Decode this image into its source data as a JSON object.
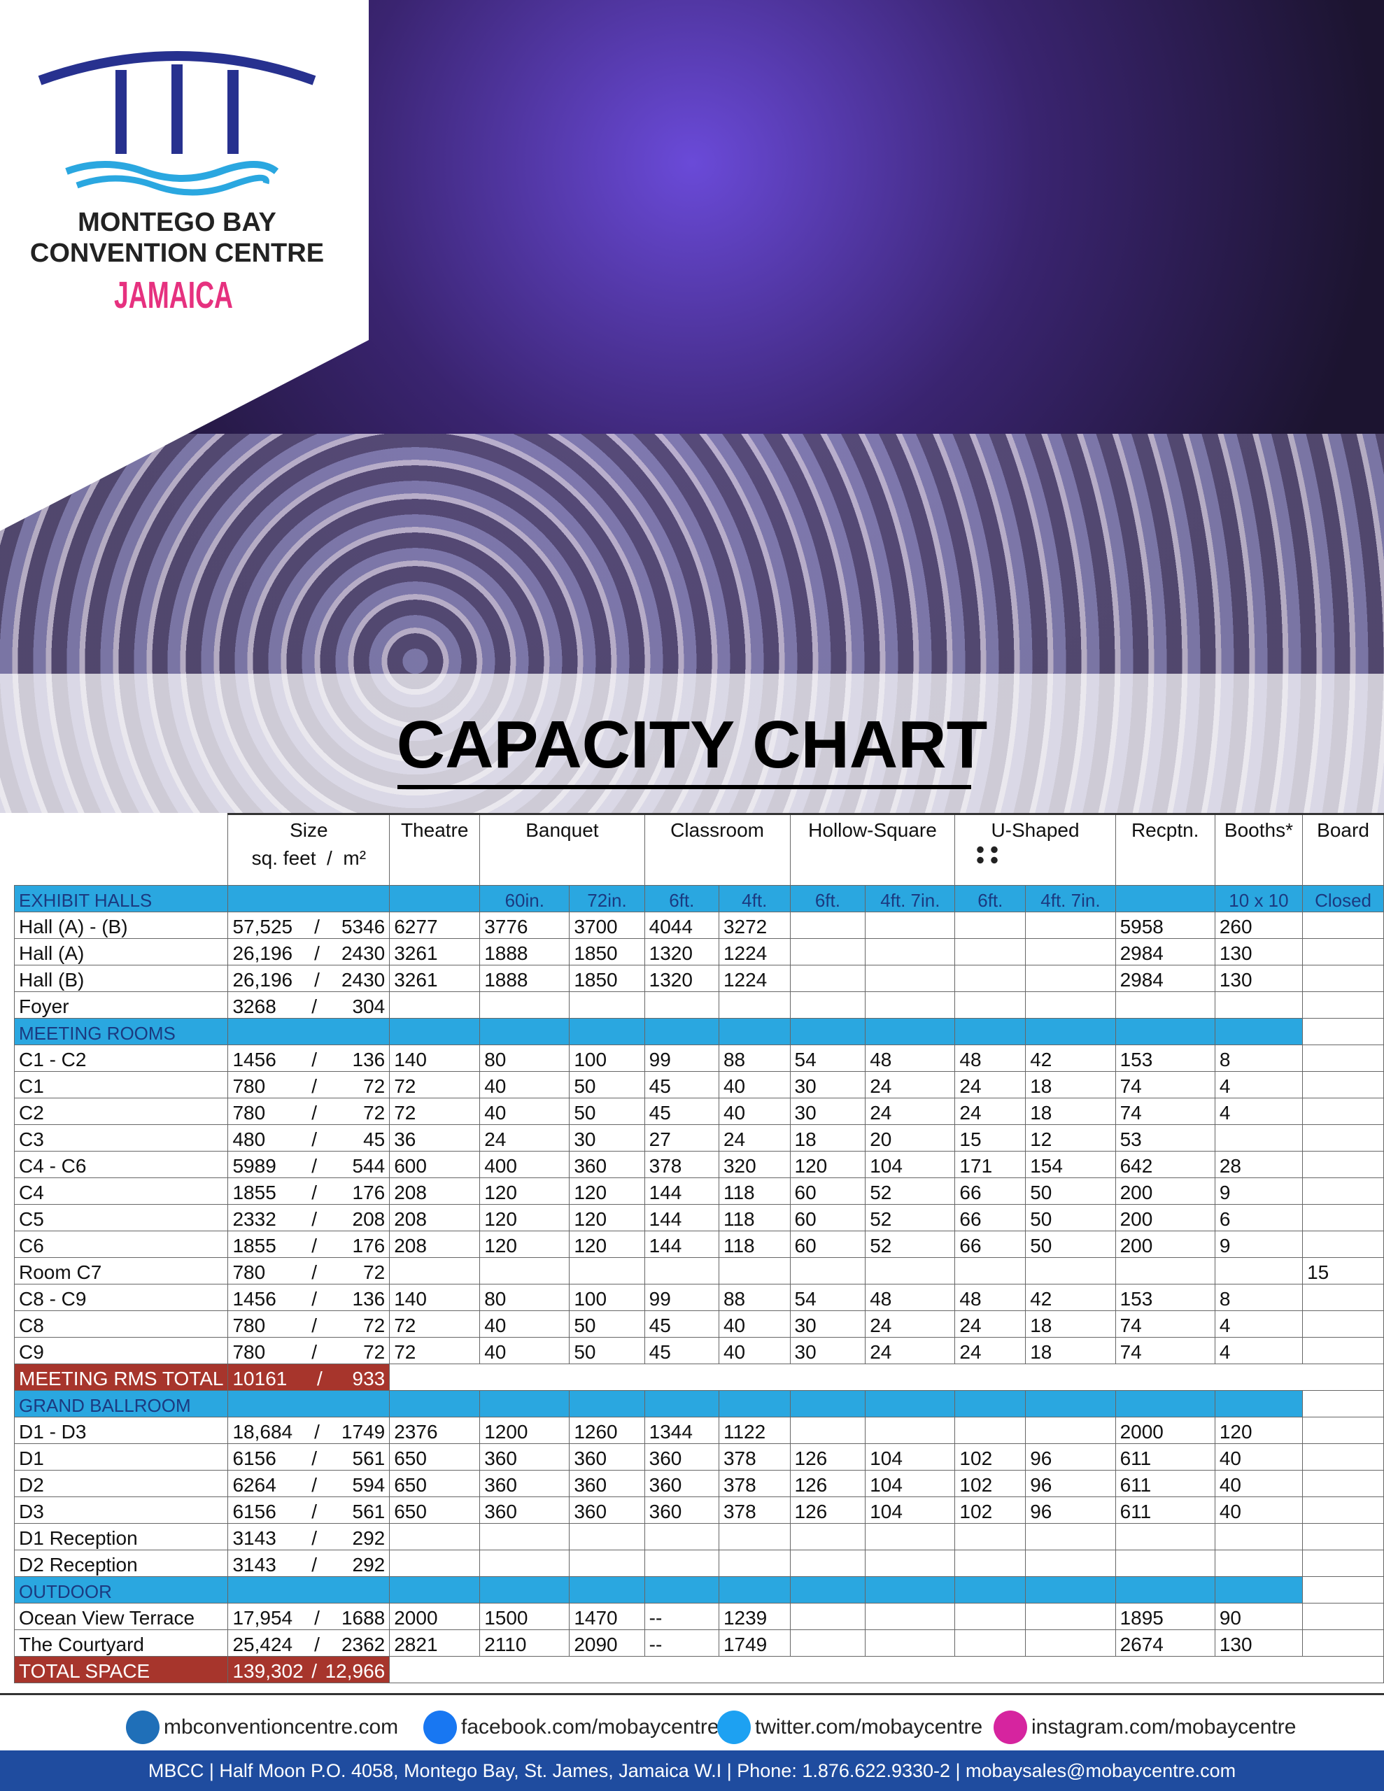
{
  "logo": {
    "line1": "MONTEGO BAY",
    "line2": "CONVENTION CENTRE",
    "line3": "JAMAICA"
  },
  "title": "CAPACITY CHART",
  "table": {
    "size_header": "Size",
    "size_units": "sq. feet  /  m²",
    "columns": [
      "Theatre",
      "Banquet",
      "Classroom",
      "Hollow-Square",
      "U-Shaped",
      "Recptn.",
      "Booths*",
      "Board"
    ],
    "subcolumns": [
      null,
      "60in.",
      "72in.",
      "6ft.",
      "4ft.",
      "6ft.",
      "4ft. 7in.",
      "6ft.",
      "4ft. 7in.",
      null,
      "10 x 10",
      "Closed"
    ],
    "separator": "/",
    "rows": [
      {
        "section": "EXHIBIT HALLS"
      },
      {
        "name": "Hall (A) - (B)",
        "sqft": "57,525",
        "m2": "5346",
        "cells": [
          "6277",
          "3776",
          "3700",
          "4044",
          "3272",
          null,
          null,
          null,
          null,
          "5958",
          "260",
          null
        ]
      },
      {
        "name": "Hall (A)",
        "sqft": "26,196",
        "m2": "2430",
        "cells": [
          "3261",
          "1888",
          "1850",
          "1320",
          "1224",
          null,
          null,
          null,
          null,
          "2984",
          "130",
          null
        ]
      },
      {
        "name": "Hall (B)",
        "sqft": "26,196",
        "m2": "2430",
        "cells": [
          "3261",
          "1888",
          "1850",
          "1320",
          "1224",
          null,
          null,
          null,
          null,
          "2984",
          "130",
          null
        ]
      },
      {
        "name": "Foyer",
        "sqft": "3268",
        "m2": "304",
        "cells": [
          null,
          null,
          null,
          null,
          null,
          null,
          null,
          null,
          null,
          null,
          null,
          null
        ]
      },
      {
        "section": "MEETING ROOMS"
      },
      {
        "name": "C1 - C2",
        "sqft": "1456",
        "m2": "136",
        "cells": [
          "140",
          "80",
          "100",
          "99",
          "88",
          "54",
          "48",
          "48",
          "42",
          "153",
          "8",
          null
        ]
      },
      {
        "name": "C1",
        "sqft": "780",
        "m2": "72",
        "cells": [
          "72",
          "40",
          "50",
          "45",
          "40",
          "30",
          "24",
          "24",
          "18",
          "74",
          "4",
          null
        ]
      },
      {
        "name": "C2",
        "sqft": "780",
        "m2": "72",
        "cells": [
          "72",
          "40",
          "50",
          "45",
          "40",
          "30",
          "24",
          "24",
          "18",
          "74",
          "4",
          null
        ]
      },
      {
        "name": "C3",
        "sqft": "480",
        "m2": "45",
        "cells": [
          "36",
          "24",
          "30",
          "27",
          "24",
          "18",
          "20",
          "15",
          "12",
          "53",
          null,
          null
        ]
      },
      {
        "name": "C4 - C6",
        "sqft": "5989",
        "m2": "544",
        "cells": [
          "600",
          "400",
          "360",
          "378",
          "320",
          "120",
          "104",
          "171",
          "154",
          "642",
          "28",
          null
        ]
      },
      {
        "name": "C4",
        "sqft": "1855",
        "m2": "176",
        "cells": [
          "208",
          "120",
          "120",
          "144",
          "118",
          "60",
          "52",
          "66",
          "50",
          "200",
          "9",
          null
        ]
      },
      {
        "name": "C5",
        "sqft": "2332",
        "m2": "208",
        "cells": [
          "208",
          "120",
          "120",
          "144",
          "118",
          "60",
          "52",
          "66",
          "50",
          "200",
          "6",
          null
        ]
      },
      {
        "name": "C6",
        "sqft": "1855",
        "m2": "176",
        "cells": [
          "208",
          "120",
          "120",
          "144",
          "118",
          "60",
          "52",
          "66",
          "50",
          "200",
          "9",
          null
        ]
      },
      {
        "name": "Room C7",
        "sqft": "780",
        "m2": "72",
        "cells": [
          null,
          null,
          null,
          null,
          null,
          null,
          null,
          null,
          null,
          null,
          null,
          "15"
        ]
      },
      {
        "name": "C8 - C9",
        "sqft": "1456",
        "m2": "136",
        "cells": [
          "140",
          "80",
          "100",
          "99",
          "88",
          "54",
          "48",
          "48",
          "42",
          "153",
          "8",
          null
        ]
      },
      {
        "name": "C8",
        "sqft": "780",
        "m2": "72",
        "cells": [
          "72",
          "40",
          "50",
          "45",
          "40",
          "30",
          "24",
          "24",
          "18",
          "74",
          "4",
          null
        ]
      },
      {
        "name": "C9",
        "sqft": "780",
        "m2": "72",
        "cells": [
          "72",
          "40",
          "50",
          "45",
          "40",
          "30",
          "24",
          "24",
          "18",
          "74",
          "4",
          null
        ]
      },
      {
        "total": "MEETING RMS TOTAL",
        "sqft": "10161",
        "m2": "933"
      },
      {
        "section": "GRAND BALLROOM"
      },
      {
        "name": "D1 - D3",
        "sqft": "18,684",
        "m2": "1749",
        "cells": [
          "2376",
          "1200",
          "1260",
          "1344",
          "1122",
          null,
          null,
          null,
          null,
          "2000",
          "120",
          null
        ]
      },
      {
        "name": "D1",
        "sqft": "6156",
        "m2": "561",
        "cells": [
          "650",
          "360",
          "360",
          "360",
          "378",
          "126",
          "104",
          "102",
          "96",
          "611",
          "40",
          null
        ]
      },
      {
        "name": "D2",
        "sqft": "6264",
        "m2": "594",
        "cells": [
          "650",
          "360",
          "360",
          "360",
          "378",
          "126",
          "104",
          "102",
          "96",
          "611",
          "40",
          null
        ]
      },
      {
        "name": "D3",
        "sqft": "6156",
        "m2": "561",
        "cells": [
          "650",
          "360",
          "360",
          "360",
          "378",
          "126",
          "104",
          "102",
          "96",
          "611",
          "40",
          null
        ]
      },
      {
        "name": "D1 Reception",
        "sqft": "3143",
        "m2": "292",
        "cells": [
          null,
          null,
          null,
          null,
          null,
          null,
          null,
          null,
          null,
          null,
          null,
          null
        ]
      },
      {
        "name": "D2 Reception",
        "sqft": "3143",
        "m2": "292",
        "cells": [
          null,
          null,
          null,
          null,
          null,
          null,
          null,
          null,
          null,
          null,
          null,
          null
        ]
      },
      {
        "section": "OUTDOOR"
      },
      {
        "name": "Ocean View Terrace",
        "sqft": "17,954",
        "m2": "1688",
        "cells": [
          "2000",
          "1500",
          "1470",
          "--",
          "1239",
          null,
          null,
          null,
          null,
          "1895",
          "90",
          null
        ]
      },
      {
        "name": "The Courtyard",
        "sqft": "25,424",
        "m2": "2362",
        "cells": [
          "2821",
          "2110",
          "2090",
          "--",
          "1749",
          null,
          null,
          null,
          null,
          "2674",
          "130",
          null
        ]
      },
      {
        "total": "TOTAL SPACE",
        "sqft": "139,302",
        "m2": "12,966"
      }
    ]
  },
  "footer": {
    "links": [
      "mbconventioncentre.com",
      "facebook.com/mobaycentre",
      "twitter.com/mobaycentre",
      "instagram.com/mobaycentre"
    ],
    "address": "MBCC | Half Moon P.O. 4058, Montego Bay, St. James, Jamaica W.I | Phone: 1.876.622.9330-2 | mobaysales@mobaycentre.com"
  }
}
